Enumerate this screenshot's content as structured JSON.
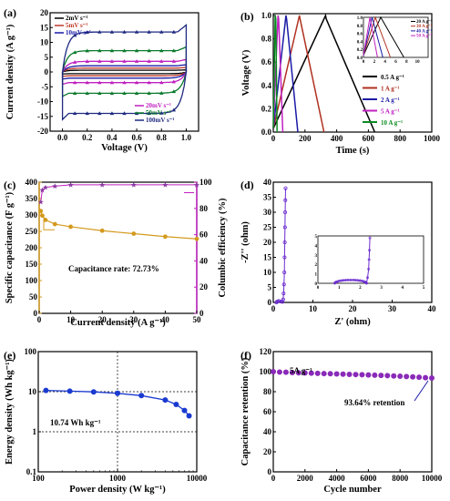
{
  "chart_data": [
    {
      "panel": "(a)",
      "type": "line",
      "xlabel": "Voltage (V)",
      "ylabel": "Current density (A g⁻¹)",
      "xlim": [
        -0.1,
        1.1
      ],
      "ylim": [
        -20,
        20
      ],
      "xticks": [
        "0.0",
        "0.2",
        "0.4",
        "0.6",
        "0.8",
        "1.0"
      ],
      "yticks": [
        "-20",
        "-15",
        "-10",
        "-5",
        "0",
        "5",
        "10",
        "15",
        "20"
      ],
      "legend_top": [
        "2mV s⁻¹",
        "5mV s⁻¹",
        "10mV s⁻¹"
      ],
      "legend_bottom": [
        "20mV s⁻¹",
        "50mV s⁻¹",
        "100mV s⁻¹"
      ],
      "series": [
        {
          "name": "2mV s⁻¹",
          "color": "#000000",
          "upper": 0.6,
          "lower": -0.6
        },
        {
          "name": "5mV s⁻¹",
          "color": "#c0392b",
          "upper": 1.3,
          "lower": -1.3
        },
        {
          "name": "10mV s⁻¹",
          "color": "#1a1aa6",
          "upper": 2.1,
          "lower": -2.1
        },
        {
          "name": "20mV s⁻¹",
          "color": "#c020c0",
          "upper": 3.6,
          "lower": -3.6
        },
        {
          "name": "50mV s⁻¹",
          "color": "#0a7a2a",
          "upper": 7.2,
          "lower": -7.2
        },
        {
          "name": "100mV s⁻¹",
          "color": "#1f2a80",
          "upper": 13.5,
          "lower": -14.0
        }
      ]
    },
    {
      "panel": "(b)",
      "type": "line",
      "xlabel": "Time (s)",
      "ylabel": "Voltage (V)",
      "xlim": [
        0,
        1000
      ],
      "ylim": [
        0,
        1.0
      ],
      "xticks": [
        "0",
        "200",
        "400",
        "600",
        "800",
        "1000"
      ],
      "yticks": [
        "0.0",
        "0.2",
        "0.4",
        "0.6",
        "0.8",
        "1.0"
      ],
      "series": [
        {
          "name": "0.5 A g⁻¹",
          "color": "#000000",
          "charge_end": 330,
          "discharge_end": 640
        },
        {
          "name": "1 A g⁻¹",
          "color": "#b03020",
          "charge_end": 165,
          "discharge_end": 320
        },
        {
          "name": "2 A g⁻¹",
          "color": "#1a1aa6",
          "charge_end": 80,
          "discharge_end": 155
        },
        {
          "name": "5 A g⁻¹",
          "color": "#c020c0",
          "charge_end": 30,
          "discharge_end": 60
        },
        {
          "name": "10 A g⁻¹",
          "color": "#0a8a20",
          "charge_end": 12,
          "discharge_end": 24
        }
      ],
      "inset": {
        "xlim": [
          0,
          12
        ],
        "ylim": [
          0,
          1.0
        ],
        "xticks": [
          "0",
          "2",
          "4",
          "6",
          "8",
          "10"
        ],
        "yticks": [
          "0.0",
          "0.2",
          "0.4",
          "0.6",
          "0.8",
          "1.0"
        ],
        "legend": [
          "20 A g⁻¹",
          "30 A g⁻¹",
          "40 A g⁻¹",
          "50 A g⁻¹"
        ],
        "series": [
          {
            "color": "#000000",
            "charge_end": 3.2,
            "discharge_end": 7.5
          },
          {
            "color": "#b03020",
            "charge_end": 2.2,
            "discharge_end": 5.0
          },
          {
            "color": "#1a1aa6",
            "charge_end": 1.6,
            "discharge_end": 3.6
          },
          {
            "color": "#c020c0",
            "charge_end": 1.2,
            "discharge_end": 2.6
          }
        ]
      }
    },
    {
      "panel": "(c)",
      "type": "scatter",
      "xlabel": "Current density (A g⁻¹)",
      "ylabel": "Specific capacitance (F g⁻¹)",
      "ylabel_right": "Columbic efficiency (%)",
      "xlim": [
        0,
        50
      ],
      "ylim": [
        0,
        400
      ],
      "ylim_right": [
        0,
        100
      ],
      "xticks": [
        "0",
        "10",
        "20",
        "30",
        "40",
        "50"
      ],
      "yticks": [
        "0",
        "50",
        "100",
        "150",
        "200",
        "250",
        "300",
        "350",
        "400"
      ],
      "yticks_right": [
        "0",
        "20",
        "40",
        "60",
        "80",
        "100"
      ],
      "annotation": "Capacitance rate: 72.73%",
      "capacitance": {
        "x": [
          0.5,
          1,
          2,
          5,
          10,
          20,
          30,
          40,
          50
        ],
        "y": [
          312,
          298,
          285,
          272,
          264,
          252,
          243,
          234,
          227
        ]
      },
      "efficiency": {
        "x": [
          0.5,
          1,
          2,
          5,
          10,
          20,
          30,
          40,
          50
        ],
        "y": [
          85,
          94,
          96,
          97,
          98,
          98,
          98,
          98,
          98
        ]
      }
    },
    {
      "panel": "(d)",
      "type": "scatter",
      "xlabel": "Z' (ohm)",
      "ylabel": "-Z'' (ohm)",
      "xlim": [
        0,
        40
      ],
      "ylim": [
        0,
        40
      ],
      "xticks": [
        "0",
        "10",
        "20",
        "30",
        "40"
      ],
      "yticks": [
        "0",
        "5",
        "10",
        "15",
        "20",
        "25",
        "30",
        "35",
        "40"
      ],
      "inset": {
        "xlim": [
          0,
          5
        ],
        "ylim": [
          0,
          5
        ],
        "xticks": [
          "0",
          "1",
          "2",
          "3",
          "4",
          "5"
        ],
        "yticks": [
          "0",
          "1",
          "2",
          "3",
          "4",
          "5"
        ]
      }
    },
    {
      "panel": "(e)",
      "type": "line",
      "xlabel": "Power density (W kg⁻¹)",
      "ylabel": "Energy density (Wh kg⁻¹)",
      "xscale": "log",
      "yscale": "log",
      "xlim": [
        100,
        10000
      ],
      "ylim": [
        0.1,
        100
      ],
      "xticks": [
        "100",
        "1000",
        "10000"
      ],
      "yticks": [
        "0.1",
        "1",
        "10",
        "100"
      ],
      "annotation": "10.74 Wh kg⁻¹",
      "x": [
        125,
        250,
        500,
        1000,
        2000,
        4000,
        5500,
        7000,
        8000
      ],
      "y": [
        10.74,
        10.3,
        9.9,
        9.1,
        8.0,
        6.2,
        4.8,
        3.4,
        2.5
      ]
    },
    {
      "panel": "(f)",
      "type": "scatter",
      "xlabel": "Cycle number",
      "ylabel": "Capacitance retention (%)",
      "xlim": [
        0,
        10000
      ],
      "ylim": [
        0,
        120
      ],
      "xticks": [
        "0",
        "2000",
        "4000",
        "6000",
        "8000",
        "10000"
      ],
      "yticks": [
        "0",
        "20",
        "40",
        "60",
        "80",
        "100",
        "120"
      ],
      "label_rate": "5A g⁻¹",
      "annotation": "93.64% retention",
      "x": [
        0,
        400,
        800,
        1200,
        1600,
        2000,
        2400,
        2800,
        3200,
        3600,
        4000,
        4400,
        4800,
        5200,
        5600,
        6000,
        6400,
        6800,
        7200,
        7600,
        8000,
        8400,
        8800,
        9200,
        9600,
        10000
      ],
      "y": [
        100,
        99.6,
        99.4,
        99.1,
        98.9,
        98.7,
        98.5,
        98.3,
        98.1,
        97.9,
        97.7,
        97.5,
        97.3,
        97.1,
        96.9,
        96.7,
        96.5,
        96.3,
        96.0,
        95.7,
        95.4,
        95.1,
        94.8,
        94.4,
        94.0,
        93.64
      ]
    }
  ]
}
